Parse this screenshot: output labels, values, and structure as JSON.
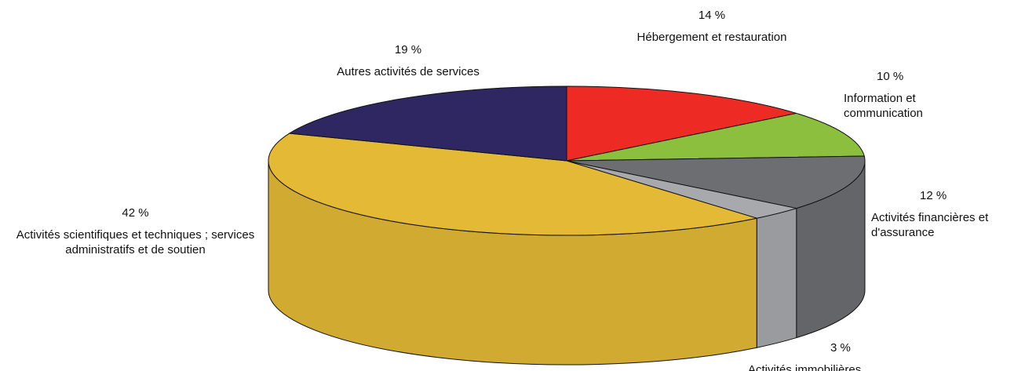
{
  "chart_data": {
    "type": "pie3d",
    "categories": [
      "Hébergement et restauration",
      "Information et communication",
      "Activités financières et d'assurance",
      "Activités immobilières",
      "Activités scientifiques et techniques ; services administratifs et de soutien",
      "Autres activités de services"
    ],
    "values": [
      14,
      10,
      12,
      3,
      42,
      19
    ],
    "value_labels": [
      "14 %",
      "10 %",
      "12 %",
      "3 %",
      "42 %",
      "19 %"
    ],
    "colors": [
      "#ee2a24",
      "#8dbf3f",
      "#6d6e71",
      "#a7a9ac",
      "#e3b935",
      "#2e2761"
    ]
  }
}
